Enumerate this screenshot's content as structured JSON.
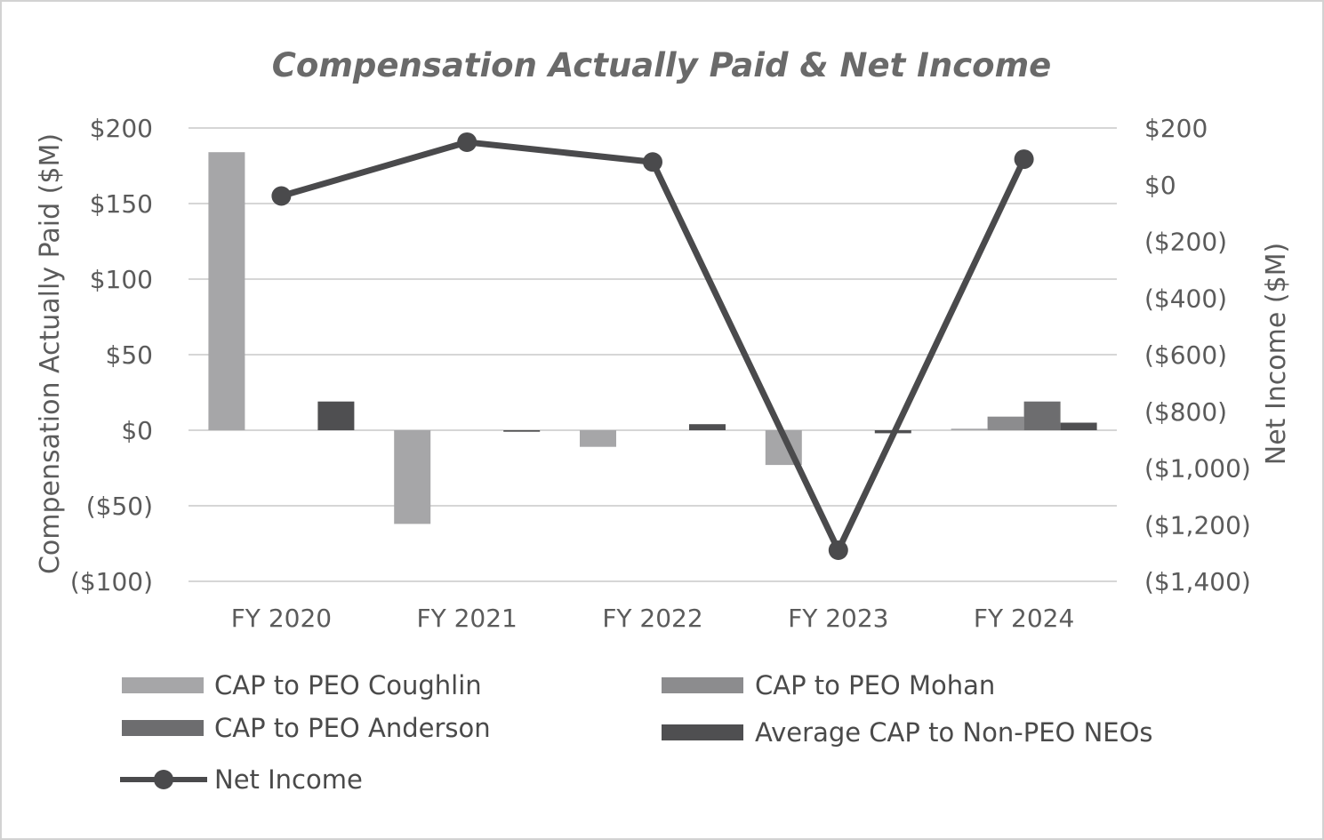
{
  "chart_data": {
    "type": "bar",
    "title": "Compensation Actually Paid & Net Income",
    "categories": [
      "FY 2020",
      "FY 2021",
      "FY 2022",
      "FY 2023",
      "FY 2024"
    ],
    "y_left": {
      "label": "Compensation Actually Paid ($M)",
      "ylim": [
        -100,
        200
      ],
      "ticks": [
        200,
        150,
        100,
        50,
        0,
        -50,
        -100
      ],
      "tick_labels": [
        "$200",
        "$150",
        "$100",
        "$50",
        "$0",
        "($50)",
        "($100)"
      ]
    },
    "y_right": {
      "label": "Net Income ($M)",
      "ylim": [
        -1400,
        200
      ],
      "ticks": [
        200,
        0,
        -200,
        -400,
        -600,
        -800,
        -1000,
        -1200,
        -1400
      ],
      "tick_labels": [
        "$200",
        "$0",
        "($200)",
        "($400)",
        "($600)",
        "($800)",
        "($1,000)",
        "($1,200)",
        "($1,400)"
      ]
    },
    "grid": true,
    "series": [
      {
        "name": "CAP to PEO Coughlin",
        "kind": "bar",
        "axis": "left",
        "color": "#a6a6a8",
        "values": [
          184,
          -62,
          -11,
          -23,
          1
        ]
      },
      {
        "name": "CAP to PEO Mohan",
        "kind": "bar",
        "axis": "left",
        "color": "#8c8c8e",
        "values": [
          0,
          0,
          0,
          0,
          9
        ]
      },
      {
        "name": "CAP to PEO Anderson",
        "kind": "bar",
        "axis": "left",
        "color": "#6d6d6f",
        "values": [
          0,
          0,
          0,
          0,
          19
        ]
      },
      {
        "name": "Average CAP to Non-PEO NEOs",
        "kind": "bar",
        "axis": "left",
        "color": "#4f4f51",
        "values": [
          19,
          -1,
          4,
          -2,
          5
        ]
      },
      {
        "name": "Net Income",
        "kind": "line",
        "axis": "right",
        "color": "#4a4a4c",
        "values": [
          -40,
          150,
          80,
          -1290,
          90
        ]
      }
    ],
    "legend_position": "bottom"
  }
}
